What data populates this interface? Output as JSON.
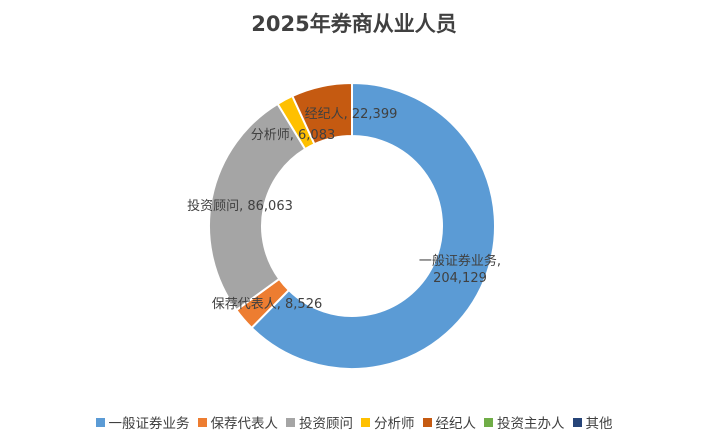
{
  "chart_data": {
    "type": "pie",
    "donut": true,
    "title": "2025年券商从业人员",
    "legend_position": "bottom",
    "slices": [
      {
        "name": "一般证券业务",
        "value": 204129,
        "label_lines": [
          "一般证券业务,",
          "204,129"
        ],
        "color": "#5b9bd5"
      },
      {
        "name": "保荐代表人",
        "value": 8526,
        "label_lines": [
          "保荐代表人, 8,526"
        ],
        "color": "#ed7d31"
      },
      {
        "name": "投资顾问",
        "value": 86063,
        "label_lines": [
          "投资顾问, 86,063"
        ],
        "color": "#a5a5a5"
      },
      {
        "name": "分析师",
        "value": 6083,
        "label_lines": [
          "分析师, 6,083"
        ],
        "color": "#ffc000"
      },
      {
        "name": "经纪人",
        "value": 22399,
        "label_lines": [
          "经纪人, 22,399"
        ],
        "color": "#c55a11"
      },
      {
        "name": "投资主办人",
        "value": 0,
        "label_lines": [],
        "color": "#70ad47"
      },
      {
        "name": "其他",
        "value": 0,
        "label_lines": [],
        "color": "#264478"
      }
    ]
  }
}
